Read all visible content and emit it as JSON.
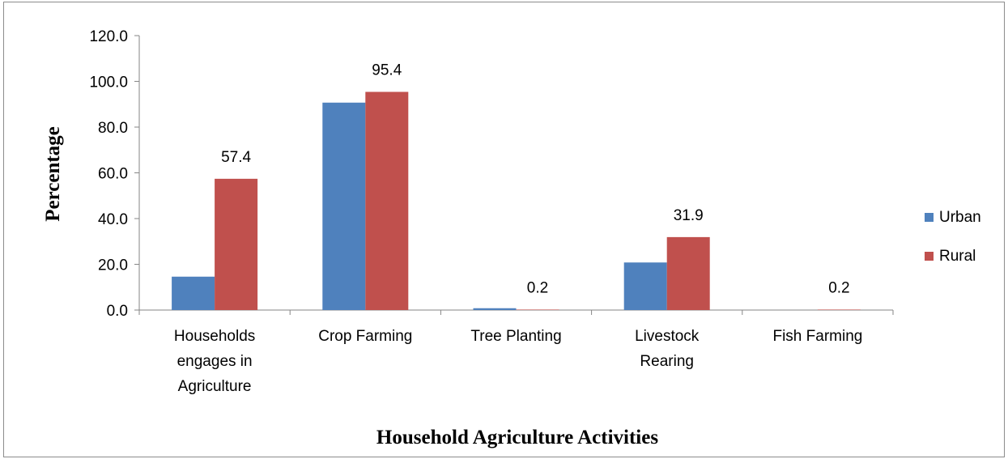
{
  "chart_data": {
    "type": "bar",
    "title": "",
    "xlabel": "Household Agriculture Activities",
    "ylabel": "Percentage",
    "ylim": [
      0,
      120
    ],
    "yticks": [
      "0.0",
      "20.0",
      "40.0",
      "60.0",
      "80.0",
      "100.0",
      "120.0"
    ],
    "grid": false,
    "legend_position": "right",
    "categories": [
      [
        "Households",
        "engages in",
        "Agriculture"
      ],
      [
        "Crop Farming"
      ],
      [
        "Tree Planting"
      ],
      [
        "Livestock",
        "Rearing"
      ],
      [
        "Fish Farming"
      ]
    ],
    "series": [
      {
        "name": "Urban",
        "color": "#4f81bd",
        "values": [
          14.6,
          90.7,
          0.8,
          20.8,
          0.0
        ],
        "labels": [
          "",
          "",
          "",
          "",
          ""
        ]
      },
      {
        "name": "Rural",
        "color": "#c0504d",
        "values": [
          57.4,
          95.4,
          0.2,
          31.9,
          0.2
        ],
        "labels": [
          "57.4",
          "95.4",
          "0.2",
          "31.9",
          "0.2"
        ]
      }
    ]
  }
}
